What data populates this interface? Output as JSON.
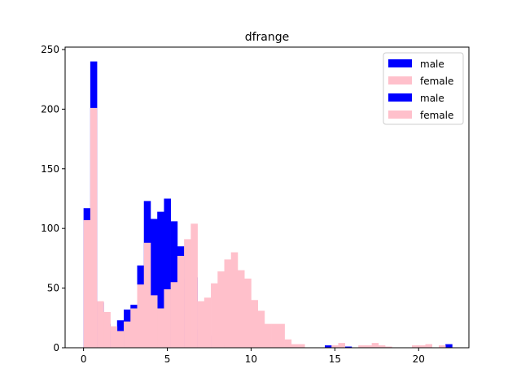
{
  "chart_data": {
    "type": "bar",
    "title": "dfrange",
    "xlabel": "",
    "ylabel": "",
    "xlim": [
      -1.1,
      23.0
    ],
    "ylim": [
      0,
      252
    ],
    "x_ticks": [
      0,
      5,
      10,
      15,
      20
    ],
    "y_ticks": [
      0,
      50,
      100,
      150,
      200,
      250
    ],
    "grid": false,
    "legend_position": "top-right",
    "bin_width": 0.4,
    "series": [
      {
        "name": "male",
        "color": "#0000ff",
        "bins": [
          {
            "x": 0.0,
            "y": 117
          },
          {
            "x": 0.4,
            "y": 240
          },
          {
            "x": 0.8,
            "y": 38
          },
          {
            "x": 1.2,
            "y": 20
          },
          {
            "x": 1.6,
            "y": 14
          },
          {
            "x": 2.0,
            "y": 23
          },
          {
            "x": 2.4,
            "y": 32
          },
          {
            "x": 2.8,
            "y": 36
          },
          {
            "x": 3.2,
            "y": 69
          },
          {
            "x": 3.6,
            "y": 123
          },
          {
            "x": 4.0,
            "y": 108
          },
          {
            "x": 4.4,
            "y": 114
          },
          {
            "x": 4.8,
            "y": 125
          },
          {
            "x": 5.2,
            "y": 106
          },
          {
            "x": 5.6,
            "y": 85
          },
          {
            "x": 6.0,
            "y": 58
          },
          {
            "x": 6.4,
            "y": 59
          },
          {
            "x": 6.8,
            "y": 15
          },
          {
            "x": 7.2,
            "y": 10
          },
          {
            "x": 7.6,
            "y": 5
          },
          {
            "x": 8.0,
            "y": 4
          },
          {
            "x": 8.4,
            "y": 2
          },
          {
            "x": 8.8,
            "y": 2
          },
          {
            "x": 9.2,
            "y": 1
          },
          {
            "x": 14.4,
            "y": 2
          },
          {
            "x": 15.6,
            "y": 1
          },
          {
            "x": 21.6,
            "y": 3
          }
        ]
      },
      {
        "name": "female",
        "color": "#ffc0cb",
        "bins": [
          {
            "x": 0.0,
            "y": 107
          },
          {
            "x": 0.4,
            "y": 201
          },
          {
            "x": 0.8,
            "y": 39
          },
          {
            "x": 1.2,
            "y": 30
          },
          {
            "x": 1.6,
            "y": 18
          },
          {
            "x": 2.0,
            "y": 14
          },
          {
            "x": 2.4,
            "y": 22
          },
          {
            "x": 2.8,
            "y": 33
          },
          {
            "x": 3.2,
            "y": 53
          },
          {
            "x": 3.6,
            "y": 88
          },
          {
            "x": 4.0,
            "y": 44
          },
          {
            "x": 4.4,
            "y": 33
          },
          {
            "x": 4.8,
            "y": 49
          },
          {
            "x": 5.2,
            "y": 55
          },
          {
            "x": 5.6,
            "y": 77
          },
          {
            "x": 6.0,
            "y": 91
          },
          {
            "x": 6.4,
            "y": 104
          },
          {
            "x": 6.8,
            "y": 39
          },
          {
            "x": 7.2,
            "y": 42
          },
          {
            "x": 7.6,
            "y": 54
          },
          {
            "x": 8.0,
            "y": 64
          },
          {
            "x": 8.4,
            "y": 74
          },
          {
            "x": 8.8,
            "y": 80
          },
          {
            "x": 9.2,
            "y": 65
          },
          {
            "x": 9.6,
            "y": 58
          },
          {
            "x": 10.0,
            "y": 40
          },
          {
            "x": 10.4,
            "y": 31
          },
          {
            "x": 10.8,
            "y": 20
          },
          {
            "x": 11.2,
            "y": 20
          },
          {
            "x": 11.6,
            "y": 20
          },
          {
            "x": 12.0,
            "y": 7
          },
          {
            "x": 12.4,
            "y": 3
          },
          {
            "x": 12.8,
            "y": 3
          },
          {
            "x": 14.8,
            "y": 2
          },
          {
            "x": 15.2,
            "y": 4
          },
          {
            "x": 16.4,
            "y": 2
          },
          {
            "x": 16.8,
            "y": 2
          },
          {
            "x": 17.2,
            "y": 4
          },
          {
            "x": 17.6,
            "y": 2
          },
          {
            "x": 18.0,
            "y": 1
          },
          {
            "x": 19.6,
            "y": 2
          },
          {
            "x": 20.0,
            "y": 2
          },
          {
            "x": 20.4,
            "y": 3
          },
          {
            "x": 21.2,
            "y": 2
          }
        ]
      }
    ],
    "legend": [
      {
        "label": "male",
        "color": "#0000ff"
      },
      {
        "label": "female",
        "color": "#ffc0cb"
      },
      {
        "label": "male",
        "color": "#0000ff"
      },
      {
        "label": "female",
        "color": "#ffc0cb"
      }
    ]
  }
}
